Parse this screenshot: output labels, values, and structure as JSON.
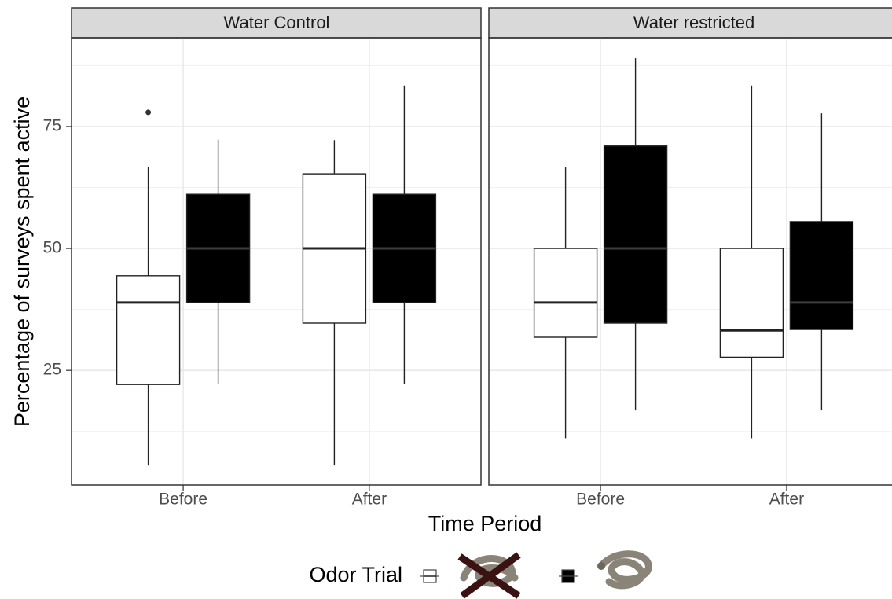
{
  "chart_data": {
    "type": "box",
    "y_label": "Percentage of surveys spent active",
    "x_label": "Time Period",
    "legend_title": "Odor Trial",
    "ylim": [
      1.5,
      93.2
    ],
    "yticks": [
      25,
      50,
      75
    ],
    "minor_yticks": [
      12.5,
      37.5,
      62.5,
      87.5
    ],
    "grid": true,
    "series": [
      {
        "color": "#ffffff",
        "median_color": "#222222"
      },
      {
        "color": "#000000",
        "median_color": "#3c3c3c"
      }
    ],
    "panels": [
      {
        "title": "Water Control",
        "categories": [
          "Before",
          "After"
        ],
        "boxes": [
          [
            {
              "min": 5.5,
              "q1": 22.1,
              "median": 38.9,
              "q3": 44.4,
              "max": 66.6,
              "outliers": [
                77.9
              ]
            },
            {
              "min": 5.5,
              "q1": 34.7,
              "median": 50,
              "q3": 65.3,
              "max": 72.2,
              "outliers": []
            }
          ],
          [
            {
              "min": 22.3,
              "q1": 38.9,
              "median": 50,
              "q3": 61.1,
              "max": 72.3,
              "outliers": []
            },
            {
              "min": 22.3,
              "q1": 38.9,
              "median": 50,
              "q3": 61.1,
              "max": 83.4,
              "outliers": []
            }
          ]
        ]
      },
      {
        "title": "Water restricted",
        "categories": [
          "Before",
          "After"
        ],
        "boxes": [
          [
            {
              "min": 11.1,
              "q1": 31.8,
              "median": 38.9,
              "q3": 50,
              "max": 66.6,
              "outliers": []
            },
            {
              "min": 11.1,
              "q1": 27.7,
              "median": 33.2,
              "q3": 50,
              "max": 83.4,
              "outliers": []
            }
          ],
          [
            {
              "min": 16.8,
              "q1": 34.7,
              "median": 50,
              "q3": 71,
              "max": 89,
              "outliers": []
            },
            {
              "min": 16.8,
              "q1": 33.4,
              "median": 38.9,
              "q3": 55.5,
              "max": 77.7,
              "outliers": []
            }
          ]
        ]
      }
    ]
  }
}
